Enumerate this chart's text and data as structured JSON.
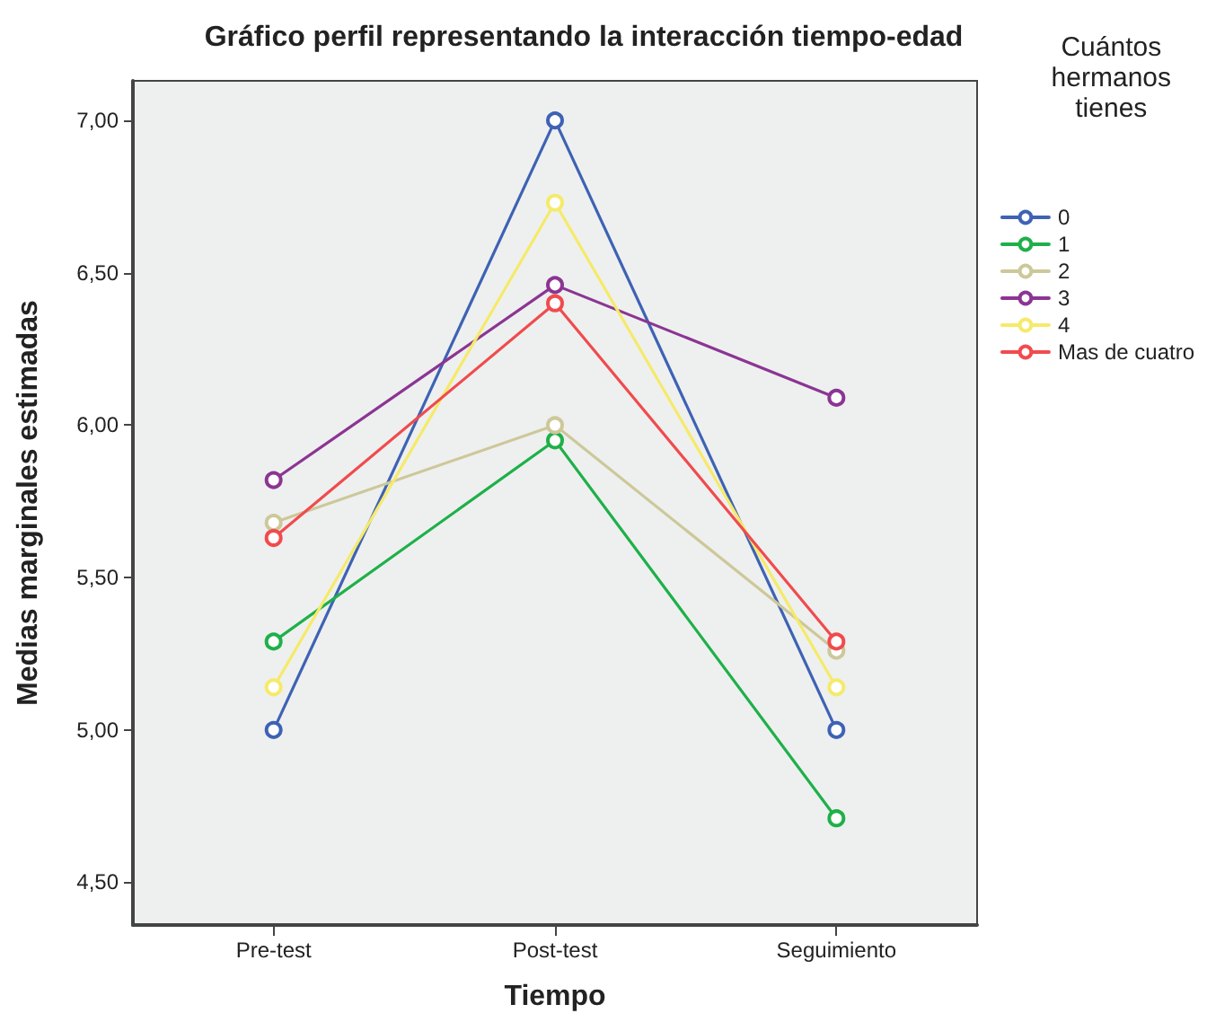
{
  "chart_data": {
    "type": "line",
    "title": "Gráfico perfil representando la interacción tiempo-edad",
    "xlabel": "Tiempo",
    "ylabel": "Medias marginales estimadas",
    "legend_title": "Cuántos hermanos tienes",
    "categories": [
      "Pre-test",
      "Post-test",
      "Seguimiento"
    ],
    "series": [
      {
        "name": "0",
        "color": "#3e62b4",
        "values": [
          5.0,
          7.0,
          5.0
        ]
      },
      {
        "name": "1",
        "color": "#1fb04a",
        "values": [
          5.29,
          5.95,
          4.71
        ]
      },
      {
        "name": "2",
        "color": "#cdc89a",
        "values": [
          5.68,
          6.0,
          5.26
        ]
      },
      {
        "name": "3",
        "color": "#8b3593",
        "values": [
          5.82,
          6.46,
          6.09
        ]
      },
      {
        "name": "4",
        "color": "#f5ea6a",
        "values": [
          5.14,
          6.73,
          5.14
        ]
      },
      {
        "name": "Mas de cuatro",
        "color": "#f04b4e",
        "values": [
          5.63,
          6.4,
          5.29
        ]
      }
    ],
    "ylim": [
      4.36,
      7.13
    ],
    "yticks": [
      {
        "value": 4.5,
        "label": "4,50"
      },
      {
        "value": 5,
        "label": "5,00"
      },
      {
        "value": 5.5,
        "label": "5,50"
      },
      {
        "value": 6,
        "label": "6,00"
      },
      {
        "value": 6.5,
        "label": "6,50"
      },
      {
        "value": 7,
        "label": "7,00"
      }
    ],
    "grid": false,
    "legend": "right",
    "marker": "circle",
    "line_style": "solid"
  }
}
